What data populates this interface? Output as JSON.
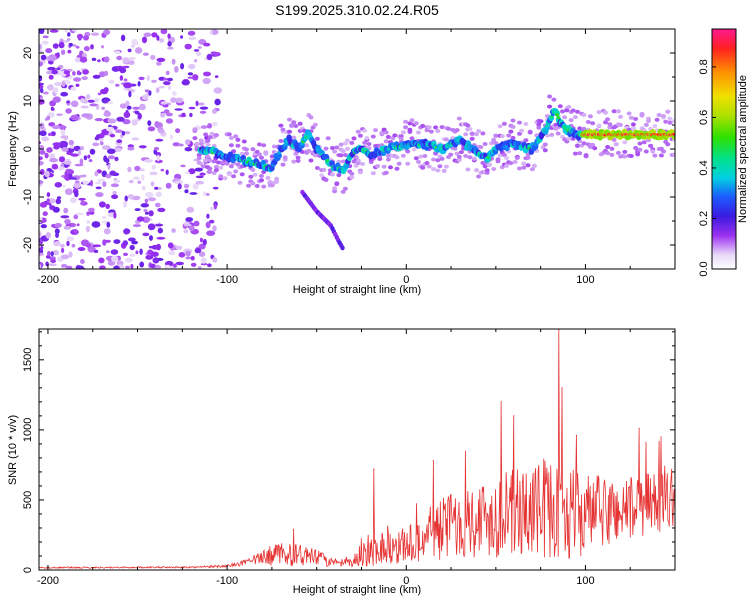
{
  "title": "S199.2025.310.02.24.R05",
  "chart_data": [
    {
      "type": "heatmap",
      "name": "spectrogram",
      "xlabel": "Height of straight line (km)",
      "ylabel": "Frequency (Hz)",
      "xlim": [
        -205,
        150
      ],
      "ylim": [
        -25,
        25
      ],
      "xticks": [
        -200,
        -100,
        0,
        100
      ],
      "xtick_labels": [
        "-200",
        "-100",
        "0",
        "100"
      ],
      "yticks": [
        -20,
        -10,
        0,
        10,
        20
      ],
      "ytick_labels": [
        "-20",
        "-10",
        "0",
        "10",
        "20"
      ],
      "colorbar": {
        "label": "Normalized spectral amplitude",
        "range": [
          0,
          0.95
        ],
        "ticks": [
          0.0,
          0.2,
          0.4,
          0.6,
          0.8
        ],
        "tick_labels": [
          "0.0",
          "0.2",
          "0.4",
          "0.6",
          "0.8"
        ]
      },
      "ridge": {
        "x": [
          -115,
          -105,
          -95,
          -85,
          -75,
          -70,
          -65,
          -60,
          -55,
          -50,
          -45,
          -40,
          -35,
          -30,
          -25,
          -20,
          -10,
          0,
          10,
          20,
          30,
          40,
          45,
          50,
          60,
          70,
          75,
          80,
          83,
          87,
          90,
          95,
          100,
          110,
          120,
          130,
          140,
          150
        ],
        "y": [
          0,
          -1,
          -2,
          -3,
          -4,
          0,
          2,
          0,
          3,
          0,
          -2,
          -4,
          -4,
          -1,
          0,
          -1,
          0,
          1,
          1,
          0,
          2,
          -1,
          -2,
          0,
          1,
          0,
          2,
          6,
          8,
          5,
          4,
          3,
          3,
          3,
          3,
          3,
          3,
          3
        ]
      },
      "secondary_streak": {
        "x": [
          -58,
          -50,
          -42,
          -38,
          -35
        ],
        "y": [
          -9,
          -13,
          -16,
          -19,
          -21
        ]
      }
    },
    {
      "type": "line",
      "name": "snr",
      "xlabel": "Height of straight line (km)",
      "ylabel": "SNR (10 * v/v)",
      "xlim": [
        -205,
        150
      ],
      "ylim": [
        0,
        1720
      ],
      "xticks": [
        -200,
        -100,
        0,
        100
      ],
      "xtick_labels": [
        "-200",
        "-100",
        "0",
        "100"
      ],
      "yticks": [
        0,
        500,
        1000,
        1500
      ],
      "ytick_labels": [
        "0",
        "500",
        "1000",
        "1500"
      ],
      "envelope": {
        "x": [
          -205,
          -120,
          -100,
          -90,
          -80,
          -70,
          -60,
          -50,
          -40,
          -30,
          -25,
          -15,
          -5,
          5,
          15,
          25,
          40,
          55,
          70,
          80,
          85,
          95,
          110,
          130,
          150
        ],
        "baseline": [
          15,
          18,
          25,
          45,
          70,
          90,
          80,
          70,
          40,
          40,
          90,
          120,
          130,
          150,
          200,
          260,
          280,
          300,
          320,
          330,
          330,
          300,
          330,
          380,
          460
        ],
        "amplitude": [
          10,
          10,
          20,
          40,
          110,
          170,
          160,
          120,
          60,
          60,
          220,
          250,
          250,
          300,
          420,
          480,
          560,
          620,
          680,
          700,
          720,
          620,
          520,
          470,
          420
        ]
      },
      "peaks": [
        {
          "x": -63,
          "y": 290
        },
        {
          "x": -18,
          "y": 720
        },
        {
          "x": 15,
          "y": 780
        },
        {
          "x": 53,
          "y": 1200
        },
        {
          "x": 60,
          "y": 1100
        },
        {
          "x": 85,
          "y": 1720
        },
        {
          "x": 87,
          "y": 1300
        },
        {
          "x": 95,
          "y": 960
        },
        {
          "x": 130,
          "y": 1010
        }
      ]
    }
  ],
  "colors": {
    "line": "#e53333",
    "axis": "#000000"
  }
}
